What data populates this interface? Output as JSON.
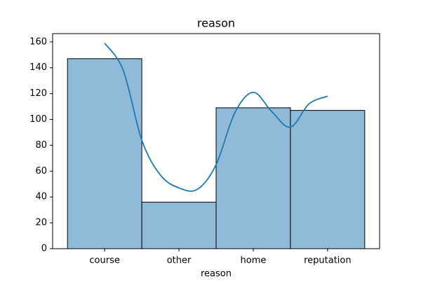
{
  "chart_data": {
    "type": "bar",
    "title": "reason",
    "xlabel": "reason",
    "categories": [
      "course",
      "other",
      "home",
      "reputation"
    ],
    "values": [
      147,
      36,
      109,
      107
    ],
    "color": "#8fbbd9",
    "edgecolor": "#000000",
    "ylim": [
      0,
      166.4
    ],
    "yticks": [
      0,
      20,
      40,
      60,
      80,
      100,
      120,
      140,
      160
    ],
    "kde": {
      "color": "#1f77b4",
      "x": [
        0,
        0.25,
        0.5,
        0.75,
        1,
        1.25,
        1.5,
        1.75,
        2,
        2.25,
        2.5,
        2.75,
        3
      ],
      "values": [
        159,
        138,
        84,
        57,
        47,
        46,
        65,
        105,
        121,
        106,
        94,
        112,
        118
      ]
    },
    "xlim": [
      -0.7,
      3.7
    ]
  }
}
